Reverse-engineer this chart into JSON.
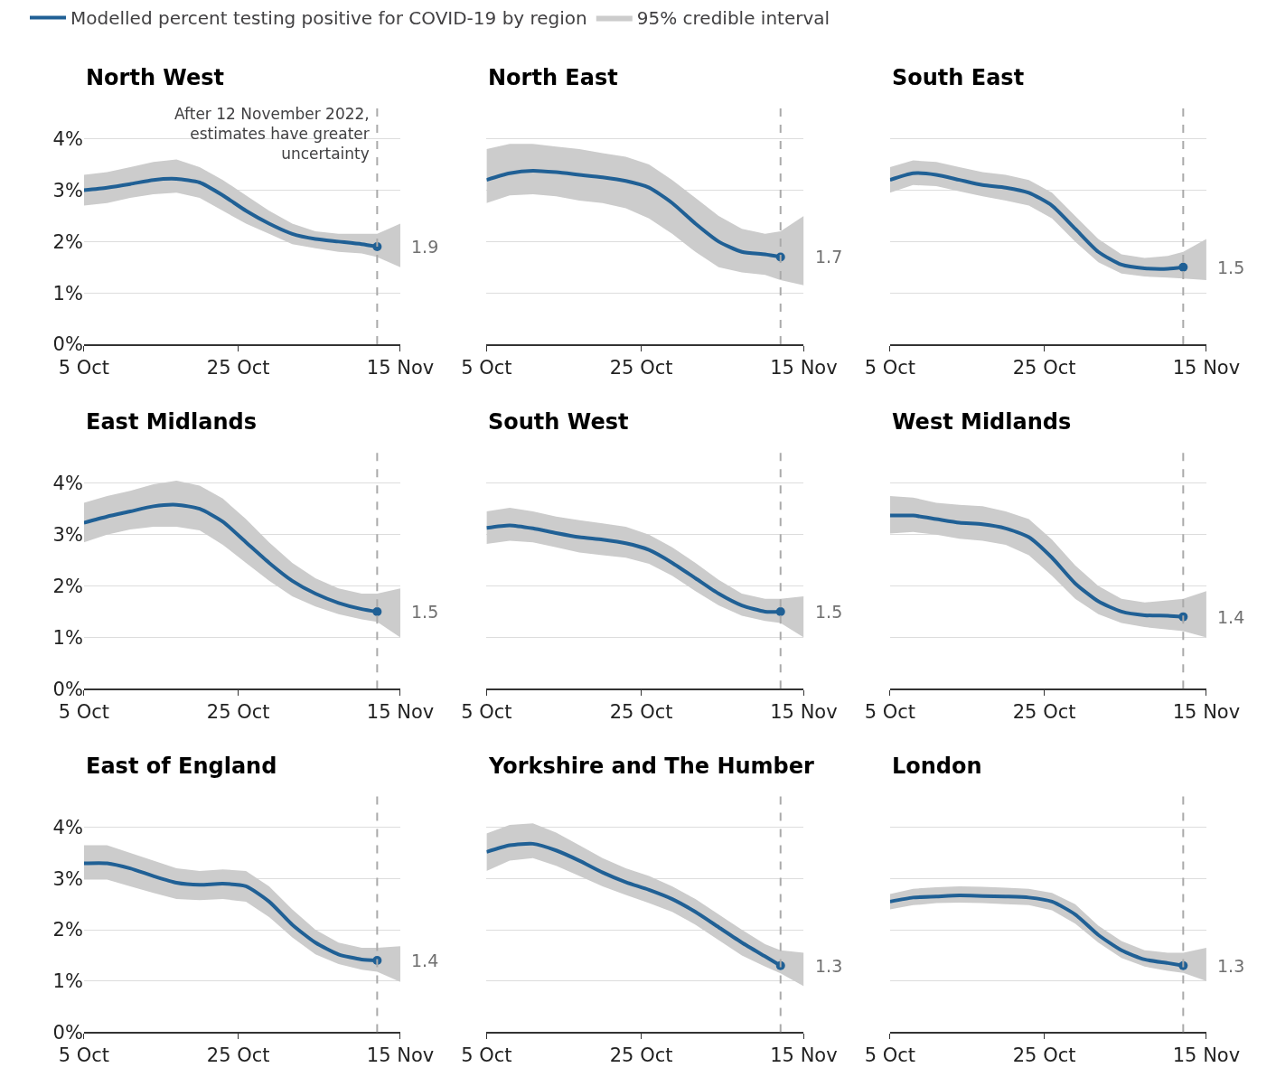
{
  "chart_data": [
    {
      "type": "line",
      "title": "North West",
      "legend": "top",
      "grid": "y",
      "x": [
        "2022-10-05",
        "2022-10-08",
        "2022-10-11",
        "2022-10-14",
        "2022-10-17",
        "2022-10-20",
        "2022-10-23",
        "2022-10-26",
        "2022-10-29",
        "2022-11-01",
        "2022-11-04",
        "2022-11-07",
        "2022-11-10",
        "2022-11-12",
        "2022-11-15"
      ],
      "xlim": [
        "2022-10-05",
        "2022-11-15"
      ],
      "xticks": [
        {
          "value": "2022-10-05",
          "label": "5 Oct"
        },
        {
          "value": "2022-10-25",
          "label": "25 Oct"
        },
        {
          "value": "2022-11-15",
          "label": "15 Nov"
        }
      ],
      "ylim": [
        0,
        4.7
      ],
      "yticks": [
        {
          "value": 0,
          "label": "0%"
        },
        {
          "value": 1,
          "label": "1%"
        },
        {
          "value": 2,
          "label": "2%"
        },
        {
          "value": 3,
          "label": "3%"
        },
        {
          "value": 4,
          "label": "4%"
        }
      ],
      "ref_lines": [
        {
          "axis": "x",
          "value": "2022-11-12",
          "label": "After 12 November 2022,\nestimates have greater\nuncertainty",
          "color": "#aaaaaa",
          "line_style": "dashed"
        }
      ],
      "series": [
        {
          "type": "area",
          "name": "95% credible interval",
          "color": "#cccccc",
          "values": [
            null,
            null,
            null,
            null,
            null,
            null,
            null,
            null,
            null,
            null,
            null,
            null,
            null,
            null,
            null
          ],
          "lower": [
            2.7,
            2.75,
            2.85,
            2.92,
            2.95,
            2.85,
            2.6,
            2.35,
            2.15,
            1.95,
            1.87,
            1.8,
            1.77,
            1.7,
            1.5
          ],
          "upper": [
            3.3,
            3.35,
            3.45,
            3.55,
            3.6,
            3.45,
            3.2,
            2.9,
            2.6,
            2.35,
            2.2,
            2.15,
            2.15,
            2.15,
            2.35
          ]
        },
        {
          "type": "line",
          "name": "Modelled percent testing positive for COVID-19 by region",
          "color": "#206095",
          "values": [
            3.0,
            3.05,
            3.12,
            3.2,
            3.22,
            3.15,
            2.9,
            2.6,
            2.35,
            2.15,
            2.05,
            2.0,
            1.95,
            1.9,
            null
          ],
          "value_labels": [
            null,
            null,
            null,
            null,
            null,
            null,
            null,
            null,
            null,
            null,
            null,
            null,
            null,
            "1.9",
            null
          ]
        }
      ]
    },
    {
      "type": "line",
      "title": "North East",
      "grid": "y",
      "tick_labels": "x",
      "x": [
        "2022-10-05",
        "2022-10-08",
        "2022-10-11",
        "2022-10-14",
        "2022-10-17",
        "2022-10-20",
        "2022-10-23",
        "2022-10-26",
        "2022-10-29",
        "2022-11-01",
        "2022-11-04",
        "2022-11-07",
        "2022-11-10",
        "2022-11-12",
        "2022-11-15"
      ],
      "xlim": [
        "2022-10-05",
        "2022-11-15"
      ],
      "xticks": [
        {
          "value": "2022-10-05",
          "label": "5 Oct"
        },
        {
          "value": "2022-10-25",
          "label": "25 Oct"
        },
        {
          "value": "2022-11-15",
          "label": "15 Nov"
        }
      ],
      "ylim": [
        0,
        4.7
      ],
      "yticks": [
        0,
        1,
        2,
        3,
        4
      ],
      "ref_lines": [
        {
          "axis": "x",
          "value": "2022-11-12",
          "color": "#aaaaaa",
          "line_style": "dashed"
        }
      ],
      "series": [
        {
          "type": "area",
          "color": "#cccccc",
          "values": [
            null,
            null,
            null,
            null,
            null,
            null,
            null,
            null,
            null,
            null,
            null,
            null,
            null,
            null,
            null
          ],
          "lower": [
            2.75,
            2.9,
            2.92,
            2.88,
            2.8,
            2.75,
            2.65,
            2.45,
            2.15,
            1.8,
            1.5,
            1.4,
            1.35,
            1.25,
            1.15
          ],
          "upper": [
            3.8,
            3.9,
            3.9,
            3.85,
            3.8,
            3.72,
            3.65,
            3.5,
            3.2,
            2.85,
            2.5,
            2.25,
            2.15,
            2.2,
            2.5
          ]
        },
        {
          "type": "line",
          "color": "#206095",
          "values": [
            3.2,
            3.33,
            3.38,
            3.35,
            3.3,
            3.25,
            3.18,
            3.05,
            2.75,
            2.35,
            2.0,
            1.8,
            1.75,
            1.7,
            null
          ],
          "value_labels": [
            null,
            null,
            null,
            null,
            null,
            null,
            null,
            null,
            null,
            null,
            null,
            null,
            null,
            "1.7",
            null
          ]
        }
      ]
    },
    {
      "type": "line",
      "title": "South East",
      "grid": "y",
      "tick_labels": "x",
      "x": [
        "2022-10-05",
        "2022-10-08",
        "2022-10-11",
        "2022-10-14",
        "2022-10-17",
        "2022-10-20",
        "2022-10-23",
        "2022-10-26",
        "2022-10-29",
        "2022-11-01",
        "2022-11-04",
        "2022-11-07",
        "2022-11-10",
        "2022-11-12",
        "2022-11-15"
      ],
      "xlim": [
        "2022-10-05",
        "2022-11-15"
      ],
      "xticks": [
        {
          "value": "2022-10-05",
          "label": "5 Oct"
        },
        {
          "value": "2022-10-25",
          "label": "25 Oct"
        },
        {
          "value": "2022-11-15",
          "label": "15 Nov"
        }
      ],
      "ylim": [
        0,
        4.7
      ],
      "yticks": [
        0,
        1,
        2,
        3,
        4
      ],
      "ref_lines": [
        {
          "axis": "x",
          "value": "2022-11-12",
          "color": "#aaaaaa",
          "line_style": "dashed"
        }
      ],
      "series": [
        {
          "type": "area",
          "color": "#cccccc",
          "values": [
            null,
            null,
            null,
            null,
            null,
            null,
            null,
            null,
            null,
            null,
            null,
            null,
            null,
            null,
            null
          ],
          "lower": [
            2.95,
            3.1,
            3.08,
            2.98,
            2.88,
            2.8,
            2.7,
            2.45,
            2.0,
            1.6,
            1.38,
            1.32,
            1.3,
            1.28,
            1.25
          ],
          "upper": [
            3.45,
            3.58,
            3.55,
            3.45,
            3.35,
            3.3,
            3.2,
            2.95,
            2.5,
            2.05,
            1.75,
            1.68,
            1.72,
            1.8,
            2.05
          ]
        },
        {
          "type": "line",
          "color": "#206095",
          "values": [
            3.2,
            3.33,
            3.3,
            3.2,
            3.1,
            3.05,
            2.95,
            2.7,
            2.25,
            1.8,
            1.55,
            1.48,
            1.47,
            1.5,
            null
          ],
          "value_labels": [
            null,
            null,
            null,
            null,
            null,
            null,
            null,
            null,
            null,
            null,
            null,
            null,
            null,
            "1.5",
            null
          ]
        }
      ]
    },
    {
      "type": "line",
      "title": "East Midlands",
      "grid": "y",
      "x": [
        "2022-10-05",
        "2022-10-08",
        "2022-10-11",
        "2022-10-14",
        "2022-10-17",
        "2022-10-20",
        "2022-10-23",
        "2022-10-26",
        "2022-10-29",
        "2022-11-01",
        "2022-11-04",
        "2022-11-07",
        "2022-11-10",
        "2022-11-12",
        "2022-11-15"
      ],
      "xlim": [
        "2022-10-05",
        "2022-11-15"
      ],
      "xticks": [
        {
          "value": "2022-10-05",
          "label": "5 Oct"
        },
        {
          "value": "2022-10-25",
          "label": "25 Oct"
        },
        {
          "value": "2022-11-15",
          "label": "15 Nov"
        }
      ],
      "ylim": [
        0,
        4.7
      ],
      "yticks": [
        {
          "value": 0,
          "label": "0%"
        },
        {
          "value": 1,
          "label": "1%"
        },
        {
          "value": 2,
          "label": "2%"
        },
        {
          "value": 3,
          "label": "3%"
        },
        {
          "value": 4,
          "label": "4%"
        }
      ],
      "ref_lines": [
        {
          "axis": "x",
          "value": "2022-11-12",
          "color": "#aaaaaa",
          "line_style": "dashed"
        }
      ],
      "series": [
        {
          "type": "area",
          "color": "#cccccc",
          "values": [
            null,
            null,
            null,
            null,
            null,
            null,
            null,
            null,
            null,
            null,
            null,
            null,
            null,
            null,
            null
          ],
          "lower": [
            2.85,
            3.0,
            3.1,
            3.15,
            3.15,
            3.08,
            2.8,
            2.45,
            2.1,
            1.8,
            1.6,
            1.45,
            1.35,
            1.3,
            1.0
          ],
          "upper": [
            3.62,
            3.75,
            3.85,
            3.98,
            4.05,
            3.95,
            3.7,
            3.3,
            2.85,
            2.45,
            2.15,
            1.95,
            1.85,
            1.85,
            1.95
          ]
        },
        {
          "type": "line",
          "color": "#206095",
          "values": [
            3.23,
            3.35,
            3.45,
            3.55,
            3.58,
            3.5,
            3.25,
            2.85,
            2.45,
            2.1,
            1.85,
            1.67,
            1.55,
            1.5,
            null
          ],
          "value_labels": [
            null,
            null,
            null,
            null,
            null,
            null,
            null,
            null,
            null,
            null,
            null,
            null,
            null,
            "1.5",
            null
          ]
        }
      ]
    },
    {
      "type": "line",
      "title": "South West",
      "grid": "y",
      "tick_labels": "x",
      "x": [
        "2022-10-05",
        "2022-10-08",
        "2022-10-11",
        "2022-10-14",
        "2022-10-17",
        "2022-10-20",
        "2022-10-23",
        "2022-10-26",
        "2022-10-29",
        "2022-11-01",
        "2022-11-04",
        "2022-11-07",
        "2022-11-10",
        "2022-11-12",
        "2022-11-15"
      ],
      "xlim": [
        "2022-10-05",
        "2022-11-15"
      ],
      "xticks": [
        {
          "value": "2022-10-05",
          "label": "5 Oct"
        },
        {
          "value": "2022-10-25",
          "label": "25 Oct"
        },
        {
          "value": "2022-11-15",
          "label": "15 Nov"
        }
      ],
      "ylim": [
        0,
        4.7
      ],
      "yticks": [
        0,
        1,
        2,
        3,
        4
      ],
      "ref_lines": [
        {
          "axis": "x",
          "value": "2022-11-12",
          "color": "#aaaaaa",
          "line_style": "dashed"
        }
      ],
      "series": [
        {
          "type": "area",
          "color": "#cccccc",
          "values": [
            null,
            null,
            null,
            null,
            null,
            null,
            null,
            null,
            null,
            null,
            null,
            null,
            null,
            null,
            null
          ],
          "lower": [
            2.82,
            2.88,
            2.85,
            2.75,
            2.65,
            2.6,
            2.55,
            2.43,
            2.2,
            1.9,
            1.62,
            1.42,
            1.32,
            1.28,
            1.0
          ],
          "upper": [
            3.45,
            3.52,
            3.45,
            3.35,
            3.28,
            3.22,
            3.15,
            3.0,
            2.75,
            2.45,
            2.12,
            1.85,
            1.75,
            1.75,
            1.8
          ]
        },
        {
          "type": "line",
          "color": "#206095",
          "values": [
            3.13,
            3.18,
            3.12,
            3.03,
            2.95,
            2.9,
            2.83,
            2.7,
            2.45,
            2.15,
            1.85,
            1.62,
            1.5,
            1.5,
            null
          ],
          "value_labels": [
            null,
            null,
            null,
            null,
            null,
            null,
            null,
            null,
            null,
            null,
            null,
            null,
            null,
            "1.5",
            null
          ]
        }
      ]
    },
    {
      "type": "line",
      "title": "West Midlands",
      "grid": "y",
      "tick_labels": "x",
      "x": [
        "2022-10-05",
        "2022-10-08",
        "2022-10-11",
        "2022-10-14",
        "2022-10-17",
        "2022-10-20",
        "2022-10-23",
        "2022-10-26",
        "2022-10-29",
        "2022-11-01",
        "2022-11-04",
        "2022-11-07",
        "2022-11-10",
        "2022-11-12",
        "2022-11-15"
      ],
      "xlim": [
        "2022-10-05",
        "2022-11-15"
      ],
      "xticks": [
        {
          "value": "2022-10-05",
          "label": "5 Oct"
        },
        {
          "value": "2022-10-25",
          "label": "25 Oct"
        },
        {
          "value": "2022-11-15",
          "label": "15 Nov"
        }
      ],
      "ylim": [
        0,
        4.7
      ],
      "yticks": [
        0,
        1,
        2,
        3,
        4
      ],
      "ref_lines": [
        {
          "axis": "x",
          "value": "2022-11-12",
          "color": "#aaaaaa",
          "line_style": "dashed"
        }
      ],
      "series": [
        {
          "type": "area",
          "color": "#cccccc",
          "values": [
            null,
            null,
            null,
            null,
            null,
            null,
            null,
            null,
            null,
            null,
            null,
            null,
            null,
            null,
            null
          ],
          "lower": [
            3.02,
            3.05,
            3.0,
            2.92,
            2.88,
            2.8,
            2.6,
            2.2,
            1.75,
            1.45,
            1.28,
            1.2,
            1.15,
            1.12,
            1.0
          ],
          "upper": [
            3.75,
            3.72,
            3.62,
            3.58,
            3.55,
            3.45,
            3.3,
            2.9,
            2.4,
            2.0,
            1.75,
            1.68,
            1.72,
            1.75,
            1.9
          ]
        },
        {
          "type": "line",
          "color": "#206095",
          "values": [
            3.37,
            3.37,
            3.3,
            3.23,
            3.2,
            3.12,
            2.95,
            2.55,
            2.05,
            1.7,
            1.5,
            1.43,
            1.42,
            1.4,
            null
          ],
          "value_labels": [
            null,
            null,
            null,
            null,
            null,
            null,
            null,
            null,
            null,
            null,
            null,
            null,
            null,
            "1.4",
            null
          ]
        }
      ]
    },
    {
      "type": "line",
      "title": "East of England",
      "grid": "y",
      "x": [
        "2022-10-05",
        "2022-10-08",
        "2022-10-11",
        "2022-10-14",
        "2022-10-17",
        "2022-10-20",
        "2022-10-23",
        "2022-10-26",
        "2022-10-29",
        "2022-11-01",
        "2022-11-04",
        "2022-11-07",
        "2022-11-10",
        "2022-11-12",
        "2022-11-15"
      ],
      "xlim": [
        "2022-10-05",
        "2022-11-15"
      ],
      "xticks": [
        {
          "value": "2022-10-05",
          "label": "5 Oct"
        },
        {
          "value": "2022-10-25",
          "label": "25 Oct"
        },
        {
          "value": "2022-11-15",
          "label": "15 Nov"
        }
      ],
      "ylim": [
        0,
        4.7
      ],
      "yticks": [
        {
          "value": 0,
          "label": "0%"
        },
        {
          "value": 1,
          "label": "1%"
        },
        {
          "value": 2,
          "label": "2%"
        },
        {
          "value": 3,
          "label": "3%"
        },
        {
          "value": 4,
          "label": "4%"
        }
      ],
      "ref_lines": [
        {
          "axis": "x",
          "value": "2022-11-12",
          "color": "#aaaaaa",
          "line_style": "dashed"
        }
      ],
      "series": [
        {
          "type": "area",
          "color": "#cccccc",
          "values": [
            null,
            null,
            null,
            null,
            null,
            null,
            null,
            null,
            null,
            null,
            null,
            null,
            null,
            null,
            null
          ],
          "lower": [
            2.98,
            2.98,
            2.85,
            2.72,
            2.6,
            2.58,
            2.6,
            2.55,
            2.25,
            1.85,
            1.52,
            1.33,
            1.22,
            1.18,
            0.98
          ],
          "upper": [
            3.65,
            3.65,
            3.5,
            3.35,
            3.2,
            3.15,
            3.18,
            3.15,
            2.85,
            2.4,
            2.0,
            1.75,
            1.65,
            1.65,
            1.68
          ]
        },
        {
          "type": "line",
          "color": "#206095",
          "values": [
            3.3,
            3.3,
            3.2,
            3.05,
            2.92,
            2.88,
            2.9,
            2.85,
            2.55,
            2.1,
            1.75,
            1.52,
            1.42,
            1.4,
            null
          ],
          "value_labels": [
            null,
            null,
            null,
            null,
            null,
            null,
            null,
            null,
            null,
            null,
            null,
            null,
            null,
            "1.4",
            null
          ]
        }
      ]
    },
    {
      "type": "line",
      "title": "Yorkshire and The Humber",
      "grid": "y",
      "tick_labels": "x",
      "x": [
        "2022-10-05",
        "2022-10-08",
        "2022-10-11",
        "2022-10-14",
        "2022-10-17",
        "2022-10-20",
        "2022-10-23",
        "2022-10-26",
        "2022-10-29",
        "2022-11-01",
        "2022-11-04",
        "2022-11-07",
        "2022-11-10",
        "2022-11-12",
        "2022-11-15"
      ],
      "xlim": [
        "2022-10-05",
        "2022-11-15"
      ],
      "xticks": [
        {
          "value": "2022-10-05",
          "label": "5 Oct"
        },
        {
          "value": "2022-10-25",
          "label": "25 Oct"
        },
        {
          "value": "2022-11-15",
          "label": "15 Nov"
        }
      ],
      "ylim": [
        0,
        4.7
      ],
      "yticks": [
        0,
        1,
        2,
        3,
        4
      ],
      "ref_lines": [
        {
          "axis": "x",
          "value": "2022-11-12",
          "color": "#aaaaaa",
          "line_style": "dashed"
        }
      ],
      "series": [
        {
          "type": "area",
          "color": "#cccccc",
          "values": [
            null,
            null,
            null,
            null,
            null,
            null,
            null,
            null,
            null,
            null,
            null,
            null,
            null,
            null,
            null
          ],
          "lower": [
            3.15,
            3.35,
            3.4,
            3.25,
            3.05,
            2.85,
            2.68,
            2.52,
            2.35,
            2.1,
            1.8,
            1.5,
            1.28,
            1.15,
            0.9
          ],
          "upper": [
            3.88,
            4.05,
            4.08,
            3.9,
            3.65,
            3.4,
            3.2,
            3.05,
            2.85,
            2.6,
            2.3,
            2.0,
            1.72,
            1.6,
            1.55
          ]
        },
        {
          "type": "line",
          "color": "#206095",
          "values": [
            3.52,
            3.65,
            3.68,
            3.55,
            3.35,
            3.12,
            2.93,
            2.78,
            2.6,
            2.35,
            2.05,
            1.75,
            1.48,
            1.3,
            null
          ],
          "value_labels": [
            null,
            null,
            null,
            null,
            null,
            null,
            null,
            null,
            null,
            null,
            null,
            null,
            null,
            "1.3",
            null
          ]
        }
      ]
    },
    {
      "type": "line",
      "title": "London",
      "grid": "y",
      "tick_labels": "x",
      "x": [
        "2022-10-05",
        "2022-10-08",
        "2022-10-11",
        "2022-10-14",
        "2022-10-17",
        "2022-10-20",
        "2022-10-23",
        "2022-10-26",
        "2022-10-29",
        "2022-11-01",
        "2022-11-04",
        "2022-11-07",
        "2022-11-10",
        "2022-11-12",
        "2022-11-15"
      ],
      "xlim": [
        "2022-10-05",
        "2022-11-15"
      ],
      "xticks": [
        {
          "value": "2022-10-05",
          "label": "5 Oct"
        },
        {
          "value": "2022-10-25",
          "label": "25 Oct"
        },
        {
          "value": "2022-11-15",
          "label": "15 Nov"
        }
      ],
      "ylim": [
        0,
        4.7
      ],
      "yticks": [
        0,
        1,
        2,
        3,
        4
      ],
      "ref_lines": [
        {
          "axis": "x",
          "value": "2022-11-12",
          "color": "#aaaaaa",
          "line_style": "dashed"
        }
      ],
      "series": [
        {
          "type": "area",
          "color": "#cccccc",
          "values": [
            null,
            null,
            null,
            null,
            null,
            null,
            null,
            null,
            null,
            null,
            null,
            null,
            null,
            null,
            null
          ],
          "lower": [
            2.4,
            2.48,
            2.52,
            2.53,
            2.52,
            2.5,
            2.48,
            2.38,
            2.12,
            1.75,
            1.45,
            1.28,
            1.2,
            1.16,
            1.0
          ],
          "upper": [
            2.7,
            2.8,
            2.83,
            2.85,
            2.84,
            2.82,
            2.8,
            2.72,
            2.5,
            2.08,
            1.78,
            1.6,
            1.55,
            1.55,
            1.65
          ]
        },
        {
          "type": "line",
          "color": "#206095",
          "values": [
            2.55,
            2.63,
            2.65,
            2.67,
            2.66,
            2.65,
            2.63,
            2.55,
            2.3,
            1.9,
            1.6,
            1.42,
            1.35,
            1.3,
            null
          ],
          "value_labels": [
            null,
            null,
            null,
            null,
            null,
            null,
            null,
            null,
            null,
            null,
            null,
            null,
            null,
            "1.3",
            null
          ]
        }
      ]
    }
  ]
}
